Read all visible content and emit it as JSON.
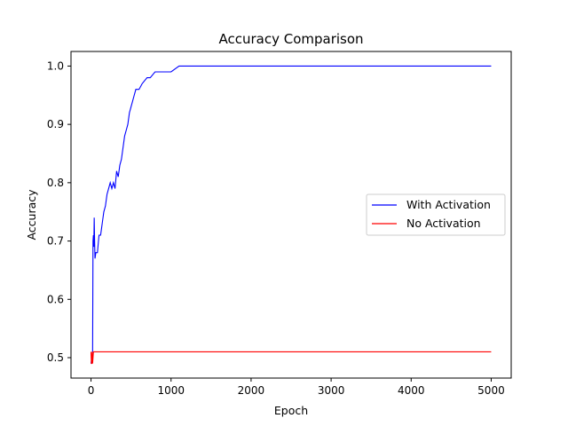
{
  "chart_data": {
    "type": "line",
    "title": "Accuracy Comparison",
    "xlabel": "Epoch",
    "ylabel": "Accuracy",
    "xlim": [
      -250,
      5250
    ],
    "ylim": [
      0.465,
      1.025
    ],
    "xticks": [
      0,
      1000,
      2000,
      3000,
      4000,
      5000
    ],
    "yticks": [
      0.5,
      0.6,
      0.7,
      0.8,
      0.9,
      1.0
    ],
    "xtick_labels": [
      "0",
      "1000",
      "2000",
      "3000",
      "4000",
      "5000"
    ],
    "ytick_labels": [
      "0.5",
      "0.6",
      "0.7",
      "0.8",
      "0.9",
      "1.0"
    ],
    "grid": false,
    "legend_position": "center-right",
    "series": [
      {
        "name": "With Activation",
        "color": "#0000ff",
        "x": [
          0,
          10,
          20,
          25,
          30,
          35,
          40,
          45,
          50,
          60,
          70,
          80,
          100,
          120,
          140,
          160,
          180,
          200,
          220,
          240,
          260,
          280,
          300,
          320,
          340,
          360,
          380,
          400,
          420,
          440,
          460,
          480,
          500,
          520,
          540,
          560,
          580,
          600,
          640,
          700,
          740,
          800,
          1000,
          1100,
          1500,
          2000,
          3000,
          4000,
          5000
        ],
        "y": [
          0.49,
          0.5,
          0.51,
          0.7,
          0.71,
          0.69,
          0.74,
          0.7,
          0.67,
          0.68,
          0.68,
          0.68,
          0.71,
          0.71,
          0.73,
          0.75,
          0.76,
          0.78,
          0.79,
          0.8,
          0.79,
          0.8,
          0.79,
          0.82,
          0.81,
          0.83,
          0.84,
          0.86,
          0.88,
          0.89,
          0.9,
          0.92,
          0.93,
          0.94,
          0.95,
          0.96,
          0.96,
          0.96,
          0.97,
          0.98,
          0.98,
          0.99,
          0.99,
          1.0,
          1.0,
          1.0,
          1.0,
          1.0,
          1.0
        ]
      },
      {
        "name": "No Activation",
        "color": "#ff0000",
        "x": [
          0,
          5,
          10,
          15,
          20,
          30,
          50,
          100,
          500,
          1000,
          2000,
          3000,
          4000,
          5000
        ],
        "y": [
          0.51,
          0.49,
          0.49,
          0.51,
          0.49,
          0.51,
          0.51,
          0.51,
          0.51,
          0.51,
          0.51,
          0.51,
          0.51,
          0.51
        ]
      }
    ]
  }
}
